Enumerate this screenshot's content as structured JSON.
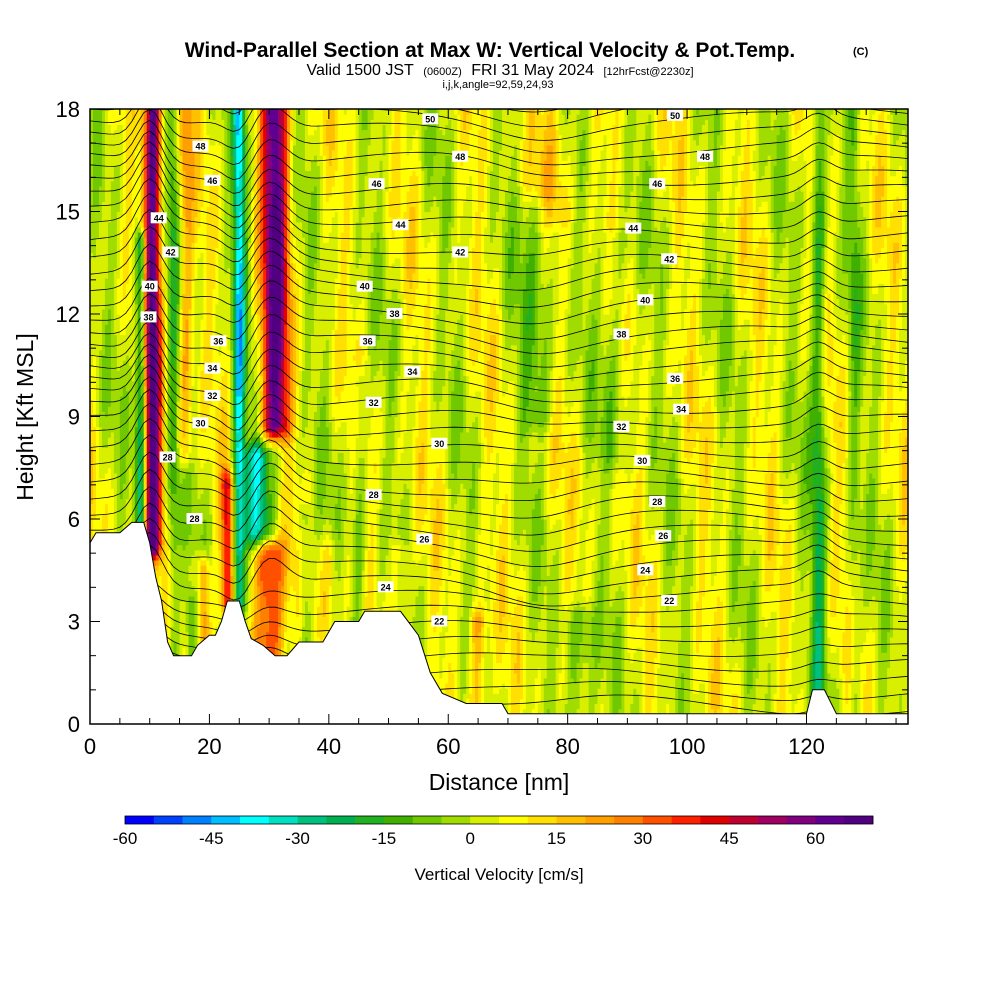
{
  "title": {
    "main": "Wind-Parallel Section at Max W: Vertical Velocity & Pot.Temp.",
    "copyright": "(C)",
    "valid_prefix": "Valid 1500 JST",
    "valid_utc": "(0600Z)",
    "valid_date": "FRI 31 May 2024",
    "forecast": "[12hrFcst@2230z]",
    "params": "i,j,k,angle=92,59,24,93"
  },
  "chart_data": {
    "type": "heatmap",
    "xlabel": "Distance [nm]",
    "ylabel": "Height [Kft MSL]",
    "xlim": [
      0,
      137
    ],
    "ylim": [
      0,
      18
    ],
    "xticks": [
      0,
      20,
      40,
      60,
      80,
      100,
      120
    ],
    "xtick_labels": [
      "0",
      "20",
      "40",
      "60",
      "80",
      "100",
      "120"
    ],
    "yticks": [
      0,
      3,
      6,
      9,
      12,
      15,
      18
    ],
    "ytick_labels": [
      "0",
      "3",
      "6",
      "9",
      "12",
      "15",
      "18"
    ],
    "colorbar": {
      "title": "Vertical Velocity [cm/s]",
      "min": -60,
      "max": 70,
      "step": 5,
      "tick_values": [
        -60,
        -45,
        -30,
        -15,
        0,
        15,
        30,
        45,
        60
      ],
      "tick_labels": [
        "-60",
        "-45",
        "-30",
        "-15",
        "0",
        "15",
        "30",
        "45",
        "60"
      ],
      "colors": [
        "#0000ff",
        "#0040ff",
        "#0080ff",
        "#00bfff",
        "#00ffff",
        "#00e0c0",
        "#00c080",
        "#00b050",
        "#20b020",
        "#40b000",
        "#70c800",
        "#a0dc00",
        "#d8f000",
        "#ffff00",
        "#ffe000",
        "#ffc000",
        "#ffa000",
        "#ff8000",
        "#ff5000",
        "#ff2000",
        "#e00000",
        "#c00030",
        "#a00060",
        "#800080",
        "#600090",
        "#500080"
      ]
    },
    "terrain_kft": [
      [
        0,
        5.3
      ],
      [
        1,
        5.6
      ],
      [
        5,
        5.6
      ],
      [
        7,
        5.9
      ],
      [
        9,
        5.9
      ],
      [
        10,
        5.3
      ],
      [
        11,
        4.3
      ],
      [
        12,
        3.6
      ],
      [
        13,
        2.4
      ],
      [
        14,
        2.0
      ],
      [
        17,
        2.0
      ],
      [
        18,
        2.3
      ],
      [
        20,
        2.6
      ],
      [
        21,
        2.6
      ],
      [
        22,
        3.0
      ],
      [
        23,
        3.6
      ],
      [
        25,
        3.6
      ],
      [
        26,
        3.0
      ],
      [
        27,
        2.5
      ],
      [
        29,
        2.3
      ],
      [
        31,
        2.0
      ],
      [
        33,
        2.0
      ],
      [
        35,
        2.4
      ],
      [
        39,
        2.4
      ],
      [
        41,
        3.0
      ],
      [
        45,
        3.0
      ],
      [
        46,
        3.3
      ],
      [
        52,
        3.3
      ],
      [
        55,
        2.6
      ],
      [
        57,
        1.5
      ],
      [
        59,
        0.9
      ],
      [
        63,
        0.6
      ],
      [
        69,
        0.6
      ],
      [
        70,
        0.3
      ],
      [
        120,
        0.3
      ],
      [
        121,
        1.0
      ],
      [
        123,
        1.0
      ],
      [
        125,
        0.3
      ],
      [
        137,
        0.3
      ]
    ],
    "updrafts": [
      {
        "x": 10.5,
        "w": 1.4,
        "y0": 5.3,
        "y1": 18,
        "amp": 62
      },
      {
        "x": 31,
        "w": 2.2,
        "y0": 8.8,
        "y1": 18,
        "amp": 60
      },
      {
        "x": 23,
        "w": 1.0,
        "y0": 3.6,
        "y1": 7.0,
        "amp": 35
      },
      {
        "x": 30,
        "w": 2.5,
        "y0": 2.0,
        "y1": 5.0,
        "amp": 40
      },
      {
        "x": 19,
        "w": 1.0,
        "y0": 2.0,
        "y1": 4.5,
        "amp": 25
      },
      {
        "x": 16,
        "w": 1.2,
        "y0": 8.0,
        "y1": 18,
        "amp": 18
      },
      {
        "x": 65,
        "w": 1.5,
        "y0": 0.6,
        "y1": 3.0,
        "amp": 20
      },
      {
        "x": 52,
        "w": 1.5,
        "y0": 3.3,
        "y1": 5.0,
        "amp": 12
      },
      {
        "x": 78,
        "w": 3.0,
        "y0": 15.0,
        "y1": 18,
        "amp": 10
      },
      {
        "x": 40,
        "w": 1.5,
        "y0": 3.0,
        "y1": 5.0,
        "amp": 10
      }
    ],
    "downdrafts": [
      {
        "x": 8.5,
        "w": 0.9,
        "y0": 5.9,
        "y1": 14,
        "amp": -35
      },
      {
        "x": 25,
        "w": 1.0,
        "y0": 3.6,
        "y1": 18,
        "amp": -40
      },
      {
        "x": 28,
        "w": 2.2,
        "y0": 5.6,
        "y1": 7.8,
        "amp": -35
      },
      {
        "x": 122,
        "w": 1.2,
        "y0": 1.0,
        "y1": 18,
        "amp": -22
      },
      {
        "x": 128,
        "w": 1.0,
        "y0": 0.3,
        "y1": 18,
        "amp": -10
      },
      {
        "x": 14,
        "w": 1.0,
        "y0": 2.0,
        "y1": 18,
        "amp": -15
      },
      {
        "x": 17,
        "w": 1.0,
        "y0": 2.0,
        "y1": 3.5,
        "amp": -15
      },
      {
        "x": 82,
        "w": 2.5,
        "y0": 0.3,
        "y1": 3.0,
        "amp": -15
      },
      {
        "x": 75,
        "w": 3.0,
        "y0": 9.0,
        "y1": 15.0,
        "amp": -12
      },
      {
        "x": 88,
        "w": 2.5,
        "y0": 8.0,
        "y1": 14.0,
        "amp": -10
      },
      {
        "x": 45,
        "w": 1.2,
        "y0": 3.0,
        "y1": 10.0,
        "amp": -12
      },
      {
        "x": 36,
        "w": 1.0,
        "y0": 2.4,
        "y1": 6.0,
        "amp": -14
      }
    ],
    "contour_labels": [
      {
        "text": "50",
        "x": 57,
        "y": 17.7
      },
      {
        "text": "50",
        "x": 98,
        "y": 17.8
      },
      {
        "text": "48",
        "x": 18.5,
        "y": 16.9
      },
      {
        "text": "48",
        "x": 62,
        "y": 16.6
      },
      {
        "text": "48",
        "x": 103,
        "y": 16.6
      },
      {
        "text": "46",
        "x": 20.5,
        "y": 15.9
      },
      {
        "text": "46",
        "x": 48,
        "y": 15.8
      },
      {
        "text": "46",
        "x": 95,
        "y": 15.8
      },
      {
        "text": "44",
        "x": 11.5,
        "y": 14.8
      },
      {
        "text": "44",
        "x": 52,
        "y": 14.6
      },
      {
        "text": "44",
        "x": 91,
        "y": 14.5
      },
      {
        "text": "42",
        "x": 13.5,
        "y": 13.8
      },
      {
        "text": "42",
        "x": 62,
        "y": 13.8
      },
      {
        "text": "42",
        "x": 97,
        "y": 13.6
      },
      {
        "text": "40",
        "x": 10,
        "y": 12.8
      },
      {
        "text": "40",
        "x": 46,
        "y": 12.8
      },
      {
        "text": "40",
        "x": 93,
        "y": 12.4
      },
      {
        "text": "38",
        "x": 9.8,
        "y": 11.9
      },
      {
        "text": "38",
        "x": 51,
        "y": 12.0
      },
      {
        "text": "38",
        "x": 89,
        "y": 11.4
      },
      {
        "text": "36",
        "x": 21.5,
        "y": 11.2
      },
      {
        "text": "36",
        "x": 46.5,
        "y": 11.2
      },
      {
        "text": "36",
        "x": 98,
        "y": 10.1
      },
      {
        "text": "34",
        "x": 20.5,
        "y": 10.4
      },
      {
        "text": "34",
        "x": 54,
        "y": 10.3
      },
      {
        "text": "34",
        "x": 99,
        "y": 9.2
      },
      {
        "text": "32",
        "x": 20.5,
        "y": 9.6
      },
      {
        "text": "32",
        "x": 47.5,
        "y": 9.4
      },
      {
        "text": "32",
        "x": 89,
        "y": 8.7
      },
      {
        "text": "30",
        "x": 18.5,
        "y": 8.8
      },
      {
        "text": "30",
        "x": 58.5,
        "y": 8.2
      },
      {
        "text": "30",
        "x": 92.5,
        "y": 7.7
      },
      {
        "text": "28",
        "x": 13,
        "y": 7.8
      },
      {
        "text": "28",
        "x": 47.5,
        "y": 6.7
      },
      {
        "text": "28",
        "x": 95,
        "y": 6.5
      },
      {
        "text": "28",
        "x": 17.5,
        "y": 6.0
      },
      {
        "text": "26",
        "x": 56,
        "y": 5.4
      },
      {
        "text": "26",
        "x": 96,
        "y": 5.5
      },
      {
        "text": "24",
        "x": 49.5,
        "y": 4.0
      },
      {
        "text": "24",
        "x": 93,
        "y": 4.5
      },
      {
        "text": "22",
        "x": 58.5,
        "y": 3.0
      },
      {
        "text": "22",
        "x": 97,
        "y": 3.6
      }
    ]
  }
}
